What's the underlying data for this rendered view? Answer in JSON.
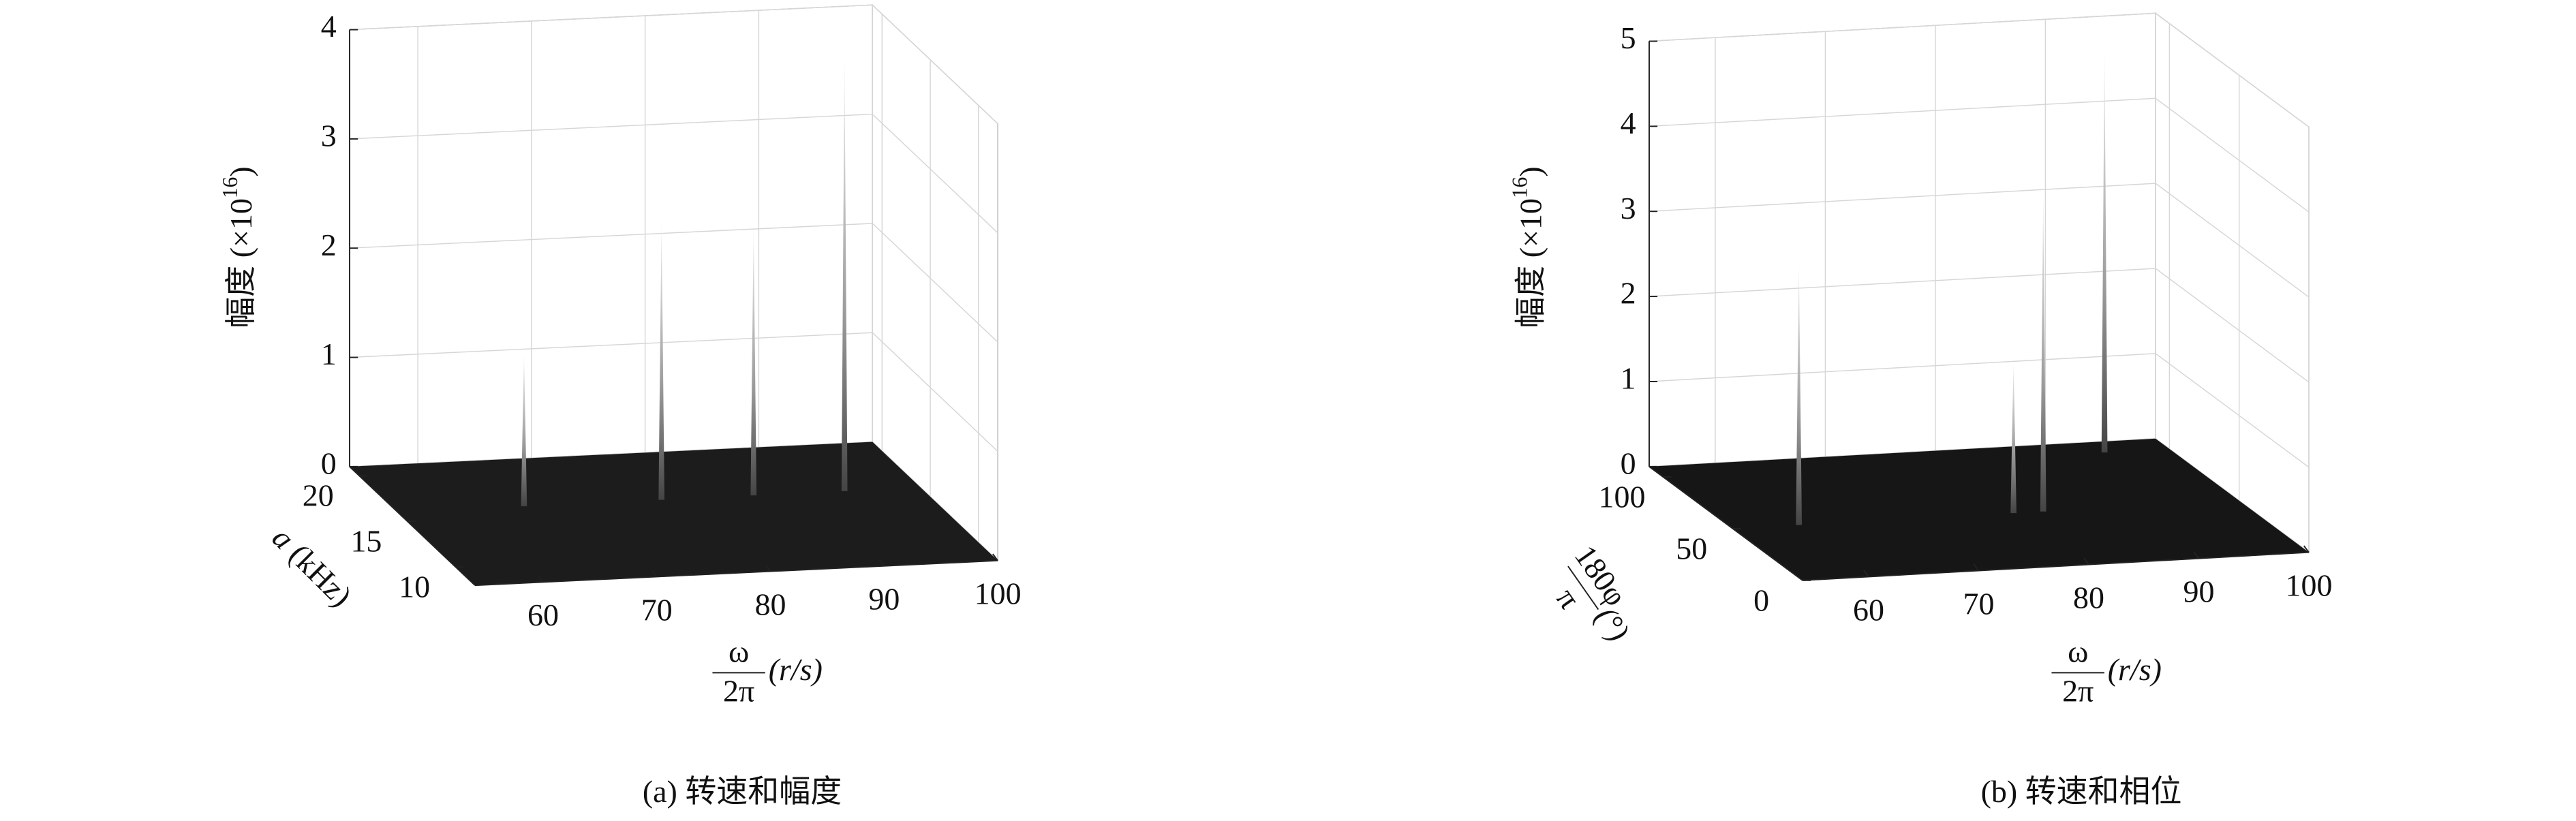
{
  "chart_data": [
    {
      "type": "surface3d",
      "caption": "(a) 转速和幅度",
      "x_label": {
        "numerator": "ω",
        "denominator": "2π",
        "unit": "(r/s)"
      },
      "y_label": {
        "symbol": "a",
        "unit": "(kHz)"
      },
      "z_label": {
        "text": "幅度 (×10",
        "exponent": "16",
        "end": ")"
      },
      "xlim": [
        54,
        100
      ],
      "xticks": [
        60,
        70,
        80,
        90,
        100
      ],
      "ylim": [
        8,
        21
      ],
      "yticks": [
        10,
        15,
        20
      ],
      "zlim": [
        0,
        4
      ],
      "zticks": [
        0,
        1,
        2,
        3,
        4
      ],
      "grid": true,
      "surface_color": "#1c1c1c",
      "peaks": {
        "x": [
          65.1,
          77.2,
          85.3,
          93.3
        ],
        "y": [
          16,
          16,
          16,
          16
        ],
        "z": [
          1.39,
          2.54,
          2.44,
          3.97
        ]
      }
    },
    {
      "type": "surface3d",
      "caption": "(b) 转速和相位",
      "x_label": {
        "numerator": "ω",
        "denominator": "2π",
        "unit": "(r/s)"
      },
      "y_label": {
        "numerator": "180φ",
        "denominator": "π",
        "unit": "(°)"
      },
      "z_label": {
        "text": "幅度 (×10",
        "exponent": "16",
        "end": ")"
      },
      "xlim": [
        54,
        100
      ],
      "xticks": [
        60,
        70,
        80,
        90,
        100
      ],
      "ylim": [
        0,
        110
      ],
      "yticks": [
        0,
        50,
        100
      ],
      "zlim": [
        0,
        5
      ],
      "zticks": [
        0,
        1,
        2,
        3,
        4,
        5
      ],
      "grid": true,
      "surface_color": "#161616",
      "peaks": {
        "x": [
          60.0,
          79.5,
          82.2,
          94.1
        ],
        "y": [
          50,
          50,
          50,
          100
        ],
        "z": [
          3.07,
          1.77,
          3.72,
          4.74
        ]
      }
    }
  ]
}
